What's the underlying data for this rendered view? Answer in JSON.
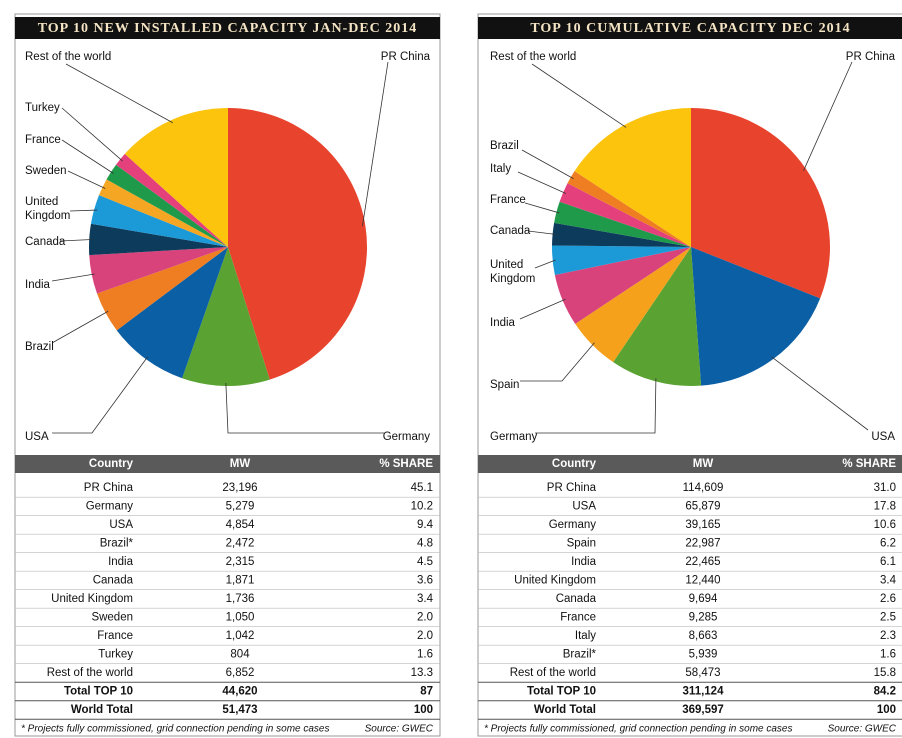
{
  "chart_data": [
    {
      "type": "pie",
      "title": "TOP 10 NEW INSTALLED CAPACITY JAN-DEC 2014",
      "categories": [
        "PR China",
        "Germany",
        "USA",
        "Brazil",
        "India",
        "Canada",
        "United Kingdom",
        "Sweden",
        "France",
        "Turkey",
        "Rest of the world"
      ],
      "values": [
        45.1,
        10.2,
        9.4,
        4.8,
        4.5,
        3.6,
        3.4,
        2.0,
        2.0,
        1.6,
        13.3
      ],
      "colors": [
        "#e8432d",
        "#5aa332",
        "#0b5fa5",
        "#ef7d22",
        "#d9437c",
        "#0c3b5c",
        "#1c9ad8",
        "#f5a623",
        "#1f9a4b",
        "#e4407c",
        "#fcc40d"
      ]
    },
    {
      "type": "pie",
      "title": "TOP 10 CUMULATIVE CAPACITY DEC 2014",
      "categories": [
        "PR China",
        "USA",
        "Germany",
        "Spain",
        "India",
        "United Kingdom",
        "Canada",
        "France",
        "Italy",
        "Brazil",
        "Rest of the world"
      ],
      "values": [
        31.0,
        17.8,
        10.6,
        6.2,
        6.1,
        3.4,
        2.6,
        2.5,
        2.3,
        1.6,
        15.8
      ],
      "colors": [
        "#e8432d",
        "#0b5fa5",
        "#5aa332",
        "#f5a11c",
        "#d9437c",
        "#1c9ad8",
        "#0c3b5c",
        "#1f9a4b",
        "#e4407c",
        "#ef7d22",
        "#fcc40d"
      ]
    }
  ],
  "tables": [
    {
      "header": [
        "Country",
        "MW",
        "% SHARE"
      ],
      "rows": [
        [
          "PR China",
          "23,196",
          "45.1"
        ],
        [
          "Germany",
          "5,279",
          "10.2"
        ],
        [
          "USA",
          "4,854",
          "9.4"
        ],
        [
          "Brazil*",
          "2,472",
          "4.8"
        ],
        [
          "India",
          "2,315",
          "4.5"
        ],
        [
          "Canada",
          "1,871",
          "3.6"
        ],
        [
          "United Kingdom",
          "1,736",
          "3.4"
        ],
        [
          "Sweden",
          "1,050",
          "2.0"
        ],
        [
          "France",
          "1,042",
          "2.0"
        ],
        [
          "Turkey",
          "804",
          "1.6"
        ],
        [
          "Rest of the world",
          "6,852",
          "13.3"
        ],
        [
          "Total TOP 10",
          "44,620",
          "87"
        ],
        [
          "World Total",
          "51,473",
          "100"
        ]
      ],
      "footnote": "* Projects fully commissioned, grid connection pending in some cases",
      "source": "Source: GWEC"
    },
    {
      "header": [
        "Country",
        "MW",
        "% SHARE"
      ],
      "rows": [
        [
          "PR China",
          "114,609",
          "31.0"
        ],
        [
          "USA",
          "65,879",
          "17.8"
        ],
        [
          "Germany",
          "39,165",
          "10.6"
        ],
        [
          "Spain",
          "22,987",
          "6.2"
        ],
        [
          "India",
          "22,465",
          "6.1"
        ],
        [
          "United Kingdom",
          "12,440",
          "3.4"
        ],
        [
          "Canada",
          "9,694",
          "2.6"
        ],
        [
          "France",
          "9,285",
          "2.5"
        ],
        [
          "Italy",
          "8,663",
          "2.3"
        ],
        [
          "Brazil*",
          "5,939",
          "1.6"
        ],
        [
          "Rest of the world",
          "58,473",
          "15.8"
        ],
        [
          "Total TOP 10",
          "311,124",
          "84.2"
        ],
        [
          "World Total",
          "369,597",
          "100"
        ]
      ],
      "footnote": "* Projects fully commissioned, grid connection pending in some cases",
      "source": "Source: GWEC"
    }
  ]
}
